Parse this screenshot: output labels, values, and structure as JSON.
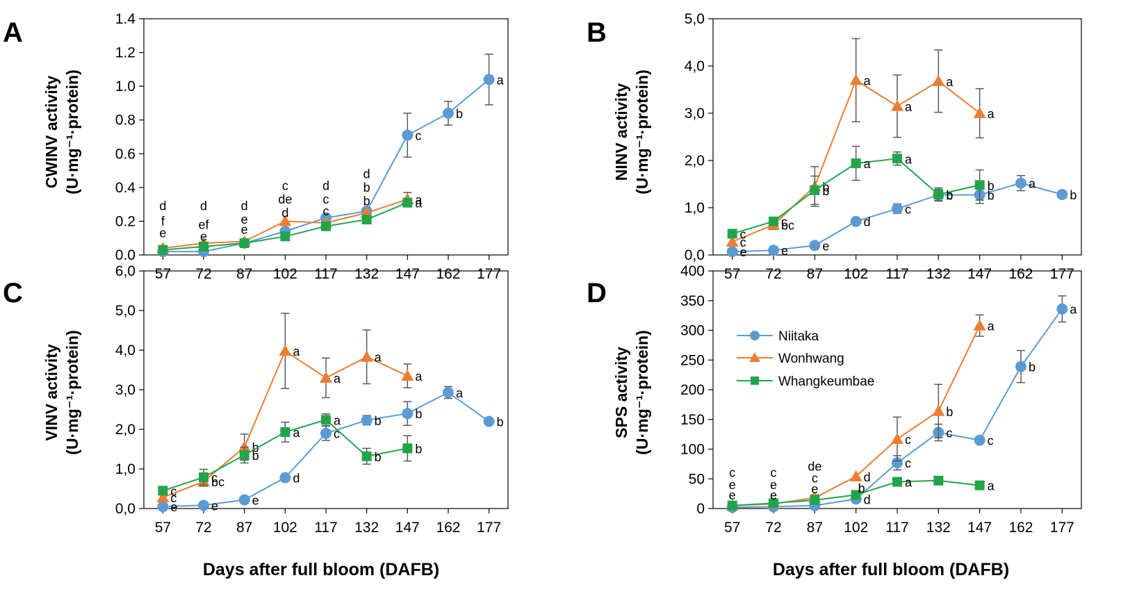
{
  "xlabel": "Days after full bloom (DAFB)",
  "series_names": [
    "Niitaka",
    "Wonhwang",
    "Whangkeumbae"
  ],
  "colors": {
    "Niitaka": "#5b9bd5",
    "Wonhwang": "#ed7d31",
    "Whangkeumbae": "#21a54a",
    "axis": "#000000",
    "error": "#595959"
  },
  "chart_data": [
    {
      "type": "line",
      "panel": "A",
      "ylabel_line1": "CWINV activity",
      "ylabel_line2": "(U·mg⁻¹·protein)",
      "x": [
        57,
        72,
        87,
        102,
        117,
        132,
        147,
        162,
        177
      ],
      "xlim": [
        50,
        184
      ],
      "ylim": [
        0,
        1.4
      ],
      "yticks": [
        0,
        0.2,
        0.4,
        0.6,
        0.8,
        1.0,
        1.2,
        1.4
      ],
      "ytick_labels": [
        "0.0",
        "0.2",
        "0.4",
        "0.6",
        "0.8",
        "1.0",
        "1.2",
        "1.4"
      ],
      "series": [
        {
          "name": "Niitaka",
          "marker": "circle",
          "x": [
            57,
            72,
            87,
            102,
            117,
            132,
            147,
            162,
            177
          ],
          "values": [
            0.02,
            0.02,
            0.07,
            0.14,
            0.22,
            0.26,
            0.71,
            0.84,
            1.04
          ],
          "errors": [
            0,
            0,
            0,
            0,
            0,
            0,
            0.13,
            0.07,
            0.15
          ],
          "labels": [
            "",
            "",
            "",
            "",
            "",
            "",
            "c",
            "b",
            "a"
          ]
        },
        {
          "name": "Wonhwang",
          "marker": "triangle",
          "x": [
            57,
            72,
            87,
            102,
            117,
            132,
            147
          ],
          "values": [
            0.04,
            0.07,
            0.08,
            0.2,
            0.19,
            0.25,
            0.33
          ],
          "errors": [
            0,
            0,
            0,
            0,
            0,
            0,
            0.04
          ],
          "labels": [
            "",
            "",
            "",
            "",
            "",
            "",
            "a"
          ]
        },
        {
          "name": "Whangkeumbae",
          "marker": "square",
          "x": [
            57,
            72,
            87,
            102,
            117,
            132,
            147
          ],
          "values": [
            0.03,
            0.05,
            0.07,
            0.11,
            0.17,
            0.21,
            0.31
          ],
          "errors": [
            0,
            0,
            0,
            0,
            0,
            0,
            0
          ],
          "labels": [
            "",
            "",
            "",
            "",
            "",
            "",
            "a"
          ]
        }
      ],
      "annotations": [
        {
          "x": 57,
          "y": 0.29,
          "text": "d"
        },
        {
          "x": 57,
          "y": 0.2,
          "text": "f"
        },
        {
          "x": 57,
          "y": 0.13,
          "text": "e"
        },
        {
          "x": 72,
          "y": 0.29,
          "text": "d"
        },
        {
          "x": 72,
          "y": 0.18,
          "text": "ef"
        },
        {
          "x": 72,
          "y": 0.11,
          "text": "e"
        },
        {
          "x": 87,
          "y": 0.29,
          "text": "d"
        },
        {
          "x": 87,
          "y": 0.21,
          "text": "e"
        },
        {
          "x": 87,
          "y": 0.15,
          "text": "e"
        },
        {
          "x": 102,
          "y": 0.41,
          "text": "c"
        },
        {
          "x": 102,
          "y": 0.33,
          "text": "de"
        },
        {
          "x": 102,
          "y": 0.25,
          "text": "d"
        },
        {
          "x": 117,
          "y": 0.41,
          "text": "d"
        },
        {
          "x": 117,
          "y": 0.33,
          "text": "c"
        },
        {
          "x": 117,
          "y": 0.26,
          "text": "c"
        },
        {
          "x": 132,
          "y": 0.48,
          "text": "d"
        },
        {
          "x": 132,
          "y": 0.4,
          "text": "b"
        },
        {
          "x": 132,
          "y": 0.32,
          "text": "b"
        }
      ]
    },
    {
      "type": "line",
      "panel": "B",
      "ylabel_line1": "NINV activity",
      "ylabel_line2": "(U·mg⁻¹·protein)",
      "x": [
        57,
        72,
        87,
        102,
        117,
        132,
        147,
        162,
        177
      ],
      "xlim": [
        50,
        184
      ],
      "ylim": [
        0,
        5
      ],
      "yticks": [
        0,
        1,
        2,
        3,
        4,
        5
      ],
      "ytick_labels": [
        "0,0",
        "1,0",
        "2,0",
        "3,0",
        "4,0",
        "5,0"
      ],
      "series": [
        {
          "name": "Niitaka",
          "marker": "circle",
          "x": [
            57,
            72,
            87,
            102,
            117,
            132,
            147,
            162,
            177
          ],
          "values": [
            0.07,
            0.1,
            0.2,
            0.71,
            0.98,
            1.27,
            1.27,
            1.52,
            1.28
          ],
          "errors": [
            0,
            0,
            0,
            0,
            0.1,
            0.12,
            0.18,
            0.16,
            0
          ],
          "labels": [
            "e",
            "e",
            "e",
            "d",
            "c",
            "b",
            "b",
            "a",
            "b"
          ]
        },
        {
          "name": "Wonhwang",
          "marker": "triangle",
          "x": [
            57,
            72,
            87,
            102,
            117,
            132,
            147
          ],
          "values": [
            0.28,
            0.64,
            1.45,
            3.7,
            3.15,
            3.68,
            3.0
          ],
          "errors": [
            0,
            0.1,
            0.42,
            0.88,
            0.66,
            0.66,
            0.52
          ],
          "labels": [
            "c",
            "bc",
            "b",
            "a",
            "a",
            "a",
            "a"
          ]
        },
        {
          "name": "Whangkeumbae",
          "marker": "square",
          "x": [
            57,
            72,
            87,
            102,
            117,
            132,
            147
          ],
          "values": [
            0.45,
            0.71,
            1.37,
            1.94,
            2.04,
            1.28,
            1.48
          ],
          "errors": [
            0,
            0,
            0.3,
            0.36,
            0.14,
            0.14,
            0.32
          ],
          "labels": [
            "c",
            "c",
            "b",
            "a",
            "a",
            "b",
            "b"
          ]
        }
      ],
      "annotations": []
    },
    {
      "type": "line",
      "panel": "C",
      "ylabel_line1": "VINV activity",
      "ylabel_line2": "(U·mg⁻¹·protein)",
      "x": [
        57,
        72,
        87,
        102,
        117,
        132,
        147,
        162,
        177
      ],
      "xlim": [
        50,
        184
      ],
      "ylim": [
        0,
        6
      ],
      "yticks": [
        0,
        1,
        2,
        3,
        4,
        5,
        6
      ],
      "ytick_labels": [
        "0,0",
        "1,0",
        "2,0",
        "3,0",
        "4,0",
        "5,0",
        "6,0"
      ],
      "series": [
        {
          "name": "Niitaka",
          "marker": "circle",
          "x": [
            57,
            72,
            87,
            102,
            117,
            132,
            147,
            162,
            177
          ],
          "values": [
            0.05,
            0.08,
            0.22,
            0.78,
            1.9,
            2.23,
            2.4,
            2.93,
            2.2
          ],
          "errors": [
            0,
            0,
            0,
            0,
            0.18,
            0.12,
            0.3,
            0.15,
            0
          ],
          "labels": [
            "e",
            "e",
            "e",
            "d",
            "c",
            "b",
            "b",
            "a",
            "b"
          ]
        },
        {
          "name": "Wonhwang",
          "marker": "triangle",
          "x": [
            57,
            72,
            87,
            102,
            117,
            132,
            147
          ],
          "values": [
            0.28,
            0.68,
            1.55,
            3.98,
            3.3,
            3.83,
            3.35
          ],
          "errors": [
            0,
            0.12,
            0.33,
            0.95,
            0.5,
            0.68,
            0.3
          ],
          "labels": [
            "c",
            "bc",
            "b",
            "a",
            "a",
            "a",
            "a"
          ]
        },
        {
          "name": "Whangkeumbae",
          "marker": "square",
          "x": [
            57,
            72,
            87,
            102,
            117,
            132,
            147
          ],
          "values": [
            0.45,
            0.79,
            1.35,
            1.93,
            2.24,
            1.32,
            1.52
          ],
          "errors": [
            0,
            0.2,
            0.2,
            0.25,
            0.15,
            0.2,
            0.32
          ],
          "labels": [
            "c",
            "c",
            "b",
            "a",
            "a",
            "b",
            "b"
          ]
        }
      ],
      "annotations": []
    },
    {
      "type": "line",
      "panel": "D",
      "ylabel_line1": "SPS activity",
      "ylabel_line2": "(U·mg⁻¹·protein)",
      "x": [
        57,
        72,
        87,
        102,
        117,
        132,
        147,
        162,
        177
      ],
      "xlim": [
        50,
        184
      ],
      "ylim": [
        0,
        400
      ],
      "yticks": [
        0,
        50,
        100,
        150,
        200,
        250,
        300,
        350,
        400
      ],
      "ytick_labels": [
        "0",
        "50",
        "100",
        "150",
        "200",
        "250",
        "300",
        "350",
        "400"
      ],
      "legend_position": "upper-left",
      "series": [
        {
          "name": "Niitaka",
          "marker": "circle",
          "x": [
            57,
            72,
            87,
            102,
            117,
            132,
            147,
            162,
            177
          ],
          "values": [
            2,
            3,
            5,
            16,
            77,
            128,
            115,
            239,
            336
          ],
          "errors": [
            0,
            0,
            0,
            0,
            12,
            14,
            0,
            27,
            22
          ],
          "labels": [
            "",
            "",
            "",
            "d",
            "c",
            "c",
            "c",
            "b",
            "a"
          ]
        },
        {
          "name": "Wonhwang",
          "marker": "triangle",
          "x": [
            57,
            72,
            87,
            102,
            117,
            132,
            147
          ],
          "values": [
            5,
            8,
            18,
            54,
            117,
            164,
            308
          ],
          "errors": [
            0,
            0,
            5,
            0,
            37,
            45,
            18
          ],
          "labels": [
            "",
            "",
            "",
            "d",
            "c",
            "b",
            "a"
          ]
        },
        {
          "name": "Whangkeumbae",
          "marker": "square",
          "x": [
            57,
            72,
            87,
            102,
            117,
            132,
            147
          ],
          "values": [
            5,
            9,
            14,
            23,
            45,
            47,
            39
          ],
          "errors": [
            0,
            0,
            0,
            0,
            0,
            0,
            7
          ],
          "labels": [
            "",
            "",
            "",
            "",
            "a",
            "",
            "a"
          ]
        }
      ],
      "annotations": [
        {
          "x": 57,
          "y": 60,
          "text": "c"
        },
        {
          "x": 57,
          "y": 40,
          "text": "e"
        },
        {
          "x": 57,
          "y": 22,
          "text": "e"
        },
        {
          "x": 72,
          "y": 60,
          "text": "c"
        },
        {
          "x": 72,
          "y": 40,
          "text": "e"
        },
        {
          "x": 72,
          "y": 22,
          "text": "e"
        },
        {
          "x": 87,
          "y": 71,
          "text": "de"
        },
        {
          "x": 87,
          "y": 51,
          "text": "c"
        },
        {
          "x": 87,
          "y": 33,
          "text": "e"
        },
        {
          "x": 104,
          "y": 34,
          "text": "b"
        }
      ]
    }
  ]
}
